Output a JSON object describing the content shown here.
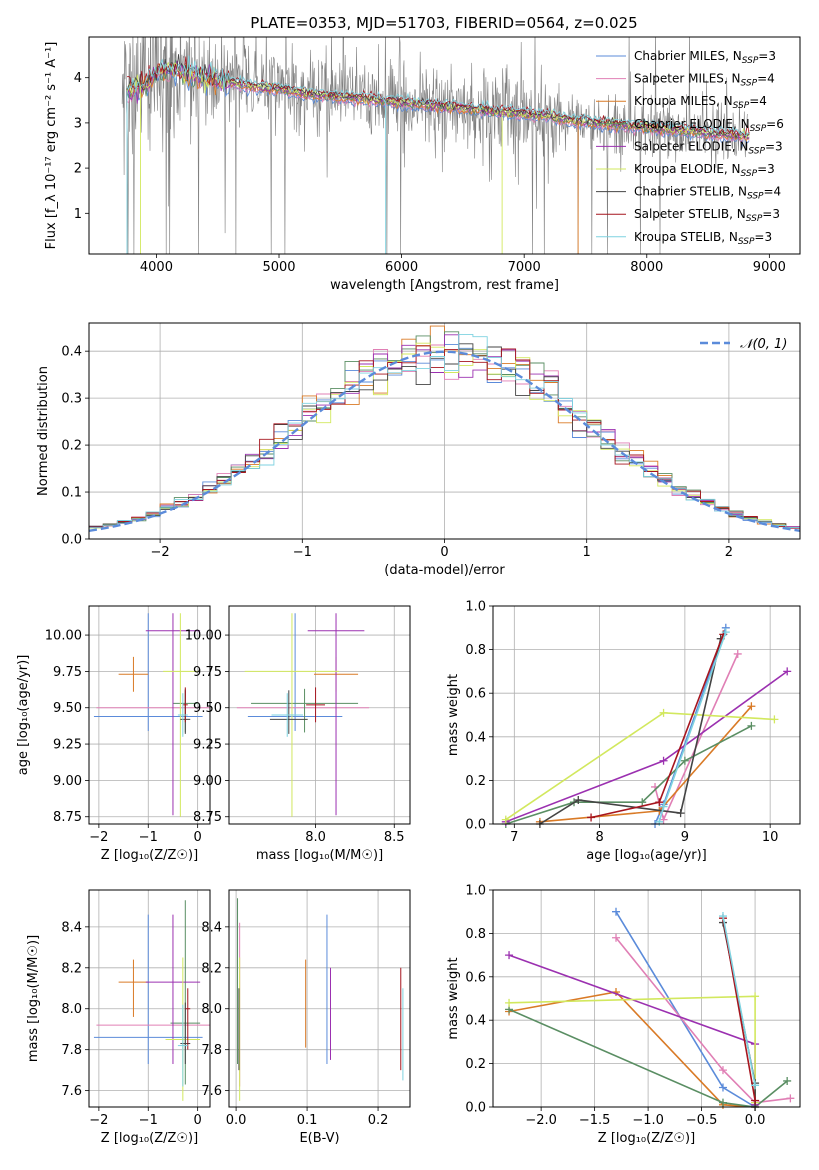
{
  "figure": {
    "title": "PLATE=0353, MJD=51703, FIBERID=0564, z=0.025"
  },
  "colors": {
    "chabrier_miles": "#5B8BDA",
    "salpeter_miles": "#E07FB5",
    "kroupa_miles": "#D97A26",
    "chabrier_elodie": "#5A8E63",
    "salpeter_elodie": "#9B30B0",
    "kroupa_elodie": "#D2E85E",
    "chabrier_stelib": "#444444",
    "salpeter_stelib": "#A6151E",
    "kroupa_stelib": "#7ED2E0",
    "data": "#808080",
    "normal": "#5B8BDA"
  },
  "chart_data": [
    {
      "type": "line",
      "id": "spectrum",
      "title": "PLATE=0353, MJD=51703, FIBERID=0564, z=0.025",
      "xlabel": "wavelength [Angstrom, rest frame]",
      "ylabel": "Flux [f_λ 10⁻¹⁷ erg cm⁻² s⁻¹ A⁻¹]",
      "xlim": [
        3450,
        9250
      ],
      "ylim": [
        0.1,
        4.9
      ],
      "xticks": [
        4000,
        5000,
        6000,
        7000,
        8000,
        9000
      ],
      "yticks": [
        1,
        2,
        3,
        4
      ],
      "legend_position": "top-right",
      "series": [
        {
          "name": "Chabrier MILES, N_SSP=3",
          "key": "chabrier_miles"
        },
        {
          "name": "Salpeter MILES, N_SSP=4",
          "key": "salpeter_miles"
        },
        {
          "name": "Kroupa MILES, N_SSP=4",
          "key": "kroupa_miles"
        },
        {
          "name": "Chabrier ELODIE, N_SSP=6",
          "key": "chabrier_elodie"
        },
        {
          "name": "Salpeter ELODIE, N_SSP=3",
          "key": "salpeter_elodie"
        },
        {
          "name": "Kroupa ELODIE, N_SSP=3",
          "key": "kroupa_elodie"
        },
        {
          "name": "Chabrier STELIB, N_SSP=4",
          "key": "chabrier_stelib"
        },
        {
          "name": "Salpeter STELIB, N_SSP=3",
          "key": "salpeter_stelib"
        },
        {
          "name": "Kroupa STELIB, N_SSP=3",
          "key": "kroupa_stelib"
        }
      ],
      "continuum": {
        "x": [
          3750,
          3900,
          4000,
          4100,
          4200,
          4400,
          4600,
          4800,
          5000,
          5200,
          5400,
          5600,
          5800,
          6000,
          6200,
          6400,
          6600,
          6800,
          7000,
          7200,
          7400,
          7600,
          7800,
          8000,
          8200,
          8400,
          8600,
          8800,
          9000
        ],
        "y": [
          3.7,
          3.85,
          4.1,
          4.2,
          4.15,
          4.0,
          3.9,
          3.8,
          3.75,
          3.65,
          3.6,
          3.55,
          3.5,
          3.45,
          3.4,
          3.35,
          3.3,
          3.25,
          3.2,
          3.15,
          3.05,
          3.0,
          2.95,
          2.9,
          2.85,
          2.8,
          2.75,
          2.7,
          2.7
        ]
      }
    },
    {
      "type": "line",
      "id": "residuals",
      "xlabel": "(data-model)/error",
      "ylabel": "Normed distribution",
      "xlim": [
        -2.5,
        2.5
      ],
      "ylim": [
        0,
        0.46
      ],
      "xticks": [
        -2,
        -1,
        0,
        1,
        2
      ],
      "yticks": [
        0.0,
        0.1,
        0.2,
        0.3,
        0.4
      ],
      "grid": true,
      "legend_position": "top-right",
      "series": [
        {
          "name": "𝒩(0, 1)",
          "key": "normal",
          "style": "dashed"
        }
      ]
    },
    {
      "type": "scatter",
      "id": "age_vs_z",
      "xlabel": "Z [log₁₀(Z/Z☉)]",
      "ylabel": "age  [log₁₀(age/yr)]",
      "xlim": [
        -2.2,
        0.25
      ],
      "ylim": [
        8.7,
        10.2
      ],
      "xticks": [
        -2,
        -1,
        0
      ],
      "yticks": [
        8.75,
        9.0,
        9.25,
        9.5,
        9.75,
        10.0
      ],
      "grid": true,
      "points": [
        {
          "key": "chabrier_miles",
          "x": -1.0,
          "y": 9.44,
          "xerr": 1.1,
          "yerr": [
            0.1,
            0.71
          ]
        },
        {
          "key": "salpeter_miles",
          "x": -0.9,
          "y": 9.5,
          "xerr": 1.15,
          "yerr": [
            0.0,
            0.0
          ]
        },
        {
          "key": "kroupa_miles",
          "x": -1.3,
          "y": 9.73,
          "xerr": 0.3,
          "yerr": [
            0.12,
            0.12
          ]
        },
        {
          "key": "chabrier_elodie",
          "x": -0.25,
          "y": 9.53,
          "xerr": 0.25,
          "yerr": [
            0.2,
            0.1
          ]
        },
        {
          "key": "salpeter_elodie",
          "x": -0.5,
          "y": 10.03,
          "xerr": 0.55,
          "yerr": [
            1.27,
            0.12
          ]
        },
        {
          "key": "kroupa_elodie",
          "x": -0.35,
          "y": 9.75,
          "xerr": 0.35,
          "yerr": [
            1.0,
            0.4
          ]
        },
        {
          "key": "chabrier_stelib",
          "x": -0.25,
          "y": 9.42,
          "xerr": 0.1,
          "yerr": [
            0.1,
            0.2
          ]
        },
        {
          "key": "salpeter_stelib",
          "x": -0.25,
          "y": 9.52,
          "xerr": 0.05,
          "yerr": [
            0.12,
            0.12
          ]
        },
        {
          "key": "kroupa_stelib",
          "x": -0.3,
          "y": 9.45,
          "xerr": 0.1,
          "yerr": [
            0.15,
            0.15
          ]
        }
      ]
    },
    {
      "type": "scatter",
      "id": "age_vs_mass",
      "xlabel": "mass [log₁₀(M/M☉)]",
      "xlim": [
        7.45,
        8.6
      ],
      "ylim": [
        8.7,
        10.2
      ],
      "xticks": [
        8.0,
        8.5
      ],
      "yticks": [
        8.75,
        9.0,
        9.25,
        9.5,
        9.75,
        10.0
      ],
      "grid": true,
      "points": [
        {
          "key": "chabrier_miles",
          "x": 7.87,
          "y": 9.44,
          "xerr": 0.3,
          "yerr": [
            0.1,
            0.71
          ]
        },
        {
          "key": "salpeter_miles",
          "x": 7.92,
          "y": 9.5,
          "xerr": 0.42,
          "yerr": [
            0.0,
            0.0
          ]
        },
        {
          "key": "kroupa_miles",
          "x": 8.13,
          "y": 9.73,
          "xerr": 0.14,
          "yerr": [
            0.12,
            0.12
          ]
        },
        {
          "key": "chabrier_elodie",
          "x": 7.93,
          "y": 9.53,
          "xerr": 0.34,
          "yerr": [
            0.2,
            0.1
          ]
        },
        {
          "key": "salpeter_elodie",
          "x": 8.13,
          "y": 10.03,
          "xerr": 0.18,
          "yerr": [
            1.27,
            0.12
          ]
        },
        {
          "key": "kroupa_elodie",
          "x": 7.85,
          "y": 9.75,
          "xerr": 0.3,
          "yerr": [
            1.0,
            0.4
          ]
        },
        {
          "key": "chabrier_stelib",
          "x": 7.83,
          "y": 9.42,
          "xerr": 0.12,
          "yerr": [
            0.1,
            0.2
          ]
        },
        {
          "key": "salpeter_stelib",
          "x": 8.0,
          "y": 9.52,
          "xerr": 0.06,
          "yerr": [
            0.12,
            0.12
          ]
        },
        {
          "key": "kroupa_stelib",
          "x": 7.82,
          "y": 9.45,
          "xerr": 0.1,
          "yerr": [
            0.15,
            0.15
          ]
        }
      ]
    },
    {
      "type": "line",
      "id": "weight_vs_age",
      "xlabel": "age  [log₁₀(age/yr)]",
      "ylabel": "mass weight",
      "xlim": [
        6.75,
        10.35
      ],
      "ylim": [
        0,
        1.0
      ],
      "xticks": [
        7,
        8,
        9,
        10
      ],
      "yticks": [
        0.0,
        0.2,
        0.4,
        0.6,
        0.8,
        1.0
      ],
      "grid": true,
      "series": [
        {
          "key": "chabrier_miles",
          "x": [
            8.65,
            8.75,
            9.48
          ],
          "y": [
            0.0,
            0.09,
            0.9
          ]
        },
        {
          "key": "salpeter_miles",
          "x": [
            8.65,
            8.75,
            9.62
          ],
          "y": [
            0.17,
            0.02,
            0.78
          ]
        },
        {
          "key": "kroupa_miles",
          "x": [
            7.3,
            8.7,
            9.78
          ],
          "y": [
            0.01,
            0.06,
            0.54
          ]
        },
        {
          "key": "chabrier_elodie",
          "x": [
            6.9,
            7.7,
            8.5,
            9.0,
            9.78
          ],
          "y": [
            0.0,
            0.1,
            0.1,
            0.29,
            0.45
          ]
        },
        {
          "key": "salpeter_elodie",
          "x": [
            6.9,
            8.75,
            10.2
          ],
          "y": [
            0.01,
            0.29,
            0.7
          ]
        },
        {
          "key": "kroupa_elodie",
          "x": [
            6.9,
            8.75,
            10.05
          ],
          "y": [
            0.02,
            0.51,
            0.48
          ]
        },
        {
          "key": "chabrier_stelib",
          "x": [
            7.3,
            7.75,
            8.95,
            9.42
          ],
          "y": [
            0.0,
            0.11,
            0.05,
            0.85
          ]
        },
        {
          "key": "salpeter_stelib",
          "x": [
            7.9,
            8.7,
            9.45
          ],
          "y": [
            0.03,
            0.1,
            0.87
          ]
        },
        {
          "key": "kroupa_stelib",
          "x": [
            8.7,
            8.75,
            9.48
          ],
          "y": [
            0.01,
            0.08,
            0.88
          ]
        }
      ]
    },
    {
      "type": "scatter",
      "id": "mass_vs_z",
      "xlabel": "Z [log₁₀(Z/Z☉)]",
      "ylabel": "mass [log₁₀(M/M☉)]",
      "xlim": [
        -2.2,
        0.25
      ],
      "ylim": [
        7.52,
        8.58
      ],
      "xticks": [
        -2,
        -1,
        0
      ],
      "yticks": [
        7.6,
        7.8,
        8.0,
        8.2,
        8.4
      ],
      "grid": true,
      "points": [
        {
          "key": "chabrier_miles",
          "x": -1.0,
          "y": 7.86,
          "xerr": 1.1,
          "yerr": [
            0.13,
            0.6
          ]
        },
        {
          "key": "salpeter_miles",
          "x": -0.9,
          "y": 7.92,
          "xerr": 1.15,
          "yerr": [
            0.0,
            0.0
          ]
        },
        {
          "key": "kroupa_miles",
          "x": -1.3,
          "y": 8.13,
          "xerr": 0.3,
          "yerr": [
            0.17,
            0.11
          ]
        },
        {
          "key": "chabrier_elodie",
          "x": -0.25,
          "y": 7.93,
          "xerr": 0.3,
          "yerr": [
            0.3,
            0.6
          ]
        },
        {
          "key": "salpeter_elodie",
          "x": -0.5,
          "y": 8.13,
          "xerr": 0.55,
          "yerr": [
            0.4,
            0.33
          ]
        },
        {
          "key": "kroupa_elodie",
          "x": -0.3,
          "y": 7.85,
          "xerr": 0.35,
          "yerr": [
            0.3,
            0.4
          ]
        },
        {
          "key": "chabrier_stelib",
          "x": -0.25,
          "y": 7.83,
          "xerr": 0.1,
          "yerr": [
            0.1,
            0.2
          ]
        },
        {
          "key": "salpeter_stelib",
          "x": -0.2,
          "y": 8.0,
          "xerr": 0.05,
          "yerr": [
            0.2,
            0.1
          ]
        },
        {
          "key": "kroupa_stelib",
          "x": -0.3,
          "y": 7.82,
          "xerr": 0.1,
          "yerr": [
            0.2,
            0.2
          ]
        }
      ]
    },
    {
      "type": "scatter",
      "id": "mass_vs_ebv",
      "xlabel": "E(B-V)",
      "xlim": [
        -0.01,
        0.245
      ],
      "ylim": [
        7.52,
        8.58
      ],
      "xticks": [
        0.0,
        0.1,
        0.2
      ],
      "yticks": [
        7.6,
        7.8,
        8.0,
        8.2,
        8.4
      ],
      "grid": true,
      "points": [
        {
          "key": "chabrier_miles",
          "x": 0.128,
          "y": 7.86,
          "yerr": [
            0.13,
            0.6
          ]
        },
        {
          "key": "salpeter_miles",
          "x": 0.005,
          "y": 7.92,
          "yerr": [
            0.3,
            0.5
          ]
        },
        {
          "key": "kroupa_miles",
          "x": 0.098,
          "y": 7.98,
          "yerr": [
            0.17,
            0.26
          ]
        },
        {
          "key": "chabrier_elodie",
          "x": 0.002,
          "y": 8.2,
          "yerr": [
            0.47,
            0.34
          ]
        },
        {
          "key": "salpeter_elodie",
          "x": 0.133,
          "y": 7.9,
          "yerr": [
            0.15,
            0.3
          ]
        },
        {
          "key": "kroupa_elodie",
          "x": 0.005,
          "y": 7.85,
          "yerr": [
            0.3,
            0.4
          ]
        },
        {
          "key": "chabrier_stelib",
          "x": 0.004,
          "y": 7.9,
          "yerr": [
            0.2,
            0.2
          ]
        },
        {
          "key": "salpeter_stelib",
          "x": 0.232,
          "y": 8.0,
          "yerr": [
            0.3,
            0.2
          ]
        },
        {
          "key": "kroupa_stelib",
          "x": 0.235,
          "y": 7.85,
          "yerr": [
            0.2,
            0.25
          ]
        }
      ]
    },
    {
      "type": "line",
      "id": "weight_vs_z",
      "xlabel": "Z [log₁₀(Z/Z☉)]",
      "ylabel": "mass weight",
      "xlim": [
        -2.45,
        0.42
      ],
      "ylim": [
        0,
        1.0
      ],
      "xticks": [
        -2.0,
        -1.5,
        -1.0,
        -0.5,
        0.0
      ],
      "yticks": [
        0.0,
        0.2,
        0.4,
        0.6,
        0.8,
        1.0
      ],
      "grid": true,
      "series": [
        {
          "key": "chabrier_miles",
          "x": [
            -1.3,
            -0.3,
            0.0
          ],
          "y": [
            0.9,
            0.09,
            0.0
          ]
        },
        {
          "key": "salpeter_miles",
          "x": [
            -1.3,
            -0.3,
            0.0,
            0.33
          ],
          "y": [
            0.78,
            0.17,
            0.02,
            0.04
          ]
        },
        {
          "key": "kroupa_miles",
          "x": [
            -2.3,
            -1.3,
            -0.3,
            0.0
          ],
          "y": [
            0.44,
            0.53,
            0.01,
            0.0
          ]
        },
        {
          "key": "chabrier_elodie",
          "x": [
            -2.3,
            -0.3,
            0.0,
            0.3
          ],
          "y": [
            0.45,
            0.02,
            0.0,
            0.12
          ]
        },
        {
          "key": "salpeter_elodie",
          "x": [
            -2.3,
            0.0,
            0.0
          ],
          "y": [
            0.7,
            0.29,
            0.01
          ]
        },
        {
          "key": "kroupa_elodie",
          "x": [
            -2.3,
            0.0,
            0.0
          ],
          "y": [
            0.48,
            0.51,
            0.02
          ]
        },
        {
          "key": "chabrier_stelib",
          "x": [
            -0.3,
            0.0,
            0.0
          ],
          "y": [
            0.85,
            0.11,
            0.0
          ]
        },
        {
          "key": "salpeter_stelib",
          "x": [
            -0.3,
            0.0
          ],
          "y": [
            0.87,
            0.03
          ]
        },
        {
          "key": "kroupa_stelib",
          "x": [
            -0.3,
            0.0
          ],
          "y": [
            0.88,
            0.1
          ]
        }
      ]
    }
  ]
}
